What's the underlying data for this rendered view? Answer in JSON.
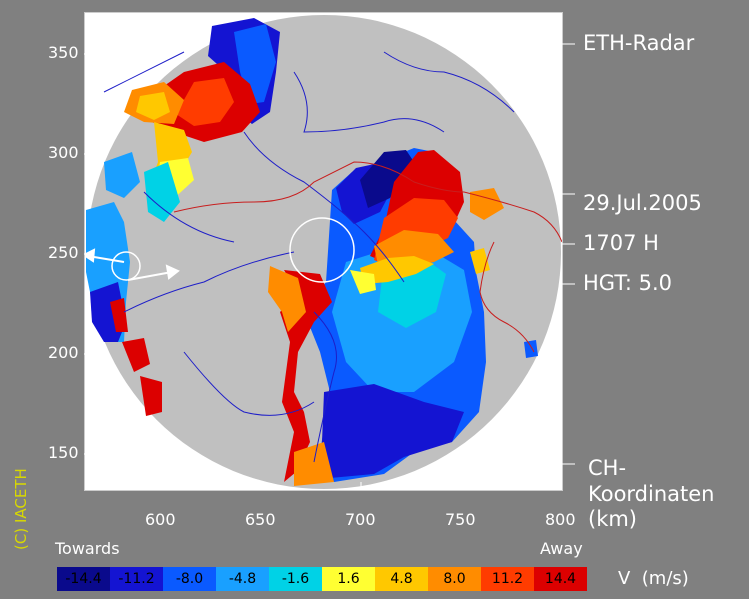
{
  "header": {
    "title": "ETH-Radar"
  },
  "info": {
    "date": "29.Jul.2005",
    "time": "1707 H",
    "height": "HGT: 5.0"
  },
  "axes": {
    "x_ticks": [
      "600",
      "650",
      "700",
      "750",
      "800"
    ],
    "y_ticks": [
      "350",
      "300",
      "250",
      "200",
      "150"
    ],
    "units_lines": [
      "CH-",
      "Koordinaten",
      "(km)"
    ]
  },
  "colorbar": {
    "left_label": "Towards",
    "right_label": "Away",
    "quantity": "V  (m/s)",
    "bins": [
      {
        "label": "-14.4",
        "color": "#0a0a8c"
      },
      {
        "label": "-11.2",
        "color": "#1414d2"
      },
      {
        "label": "-8.0",
        "color": "#0a5aff"
      },
      {
        "label": "-4.8",
        "color": "#19a0ff"
      },
      {
        "label": "-1.6",
        "color": "#00d2e6"
      },
      {
        "label": "1.6",
        "color": "#ffff32"
      },
      {
        "label": "4.8",
        "color": "#ffc800"
      },
      {
        "label": "8.0",
        "color": "#ff8c00"
      },
      {
        "label": "11.2",
        "color": "#ff3c00"
      },
      {
        "label": "14.4",
        "color": "#dc0000"
      }
    ]
  },
  "copyright": "(C) IACETH",
  "colors": {
    "background": "#808080",
    "radar_disc": "#c0c0c0",
    "rivers": "#1e1ec8",
    "borders": "#c81e1e"
  },
  "map": {
    "range_km": {
      "x": [
        560,
        800
      ],
      "y": [
        135,
        375
      ]
    },
    "radar_center_km": [
      680,
      255
    ]
  }
}
